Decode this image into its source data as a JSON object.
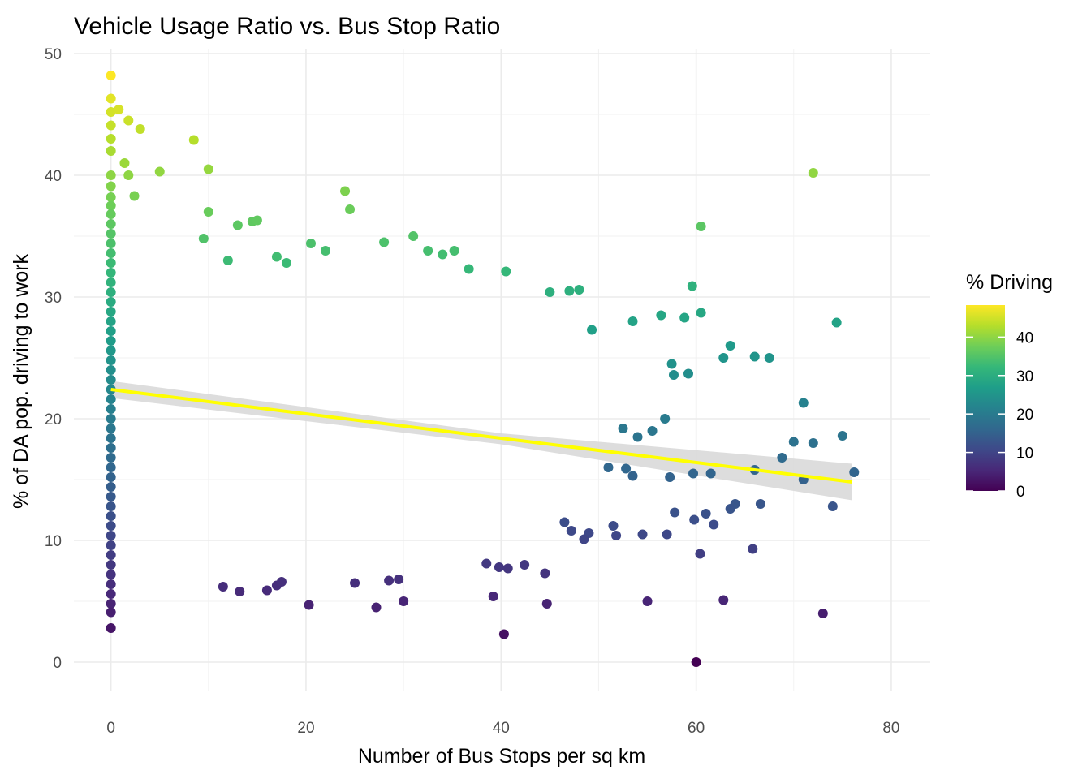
{
  "chart_data": {
    "type": "scatter",
    "title": "Vehicle Usage Ratio vs. Bus Stop Ratio",
    "xlabel": "Number of Bus Stops per sq km",
    "ylabel": "% of DA pop. driving to work",
    "xlim": [
      -3.8,
      84
    ],
    "ylim": [
      -2.4,
      50.4
    ],
    "x_ticks": [
      0,
      20,
      40,
      60,
      80
    ],
    "y_ticks": [
      0,
      10,
      20,
      30,
      40,
      50
    ],
    "grid": true,
    "colorbar": {
      "title": "% Driving",
      "min": 0,
      "max": 48.3,
      "ticks": [
        0,
        10,
        20,
        30,
        40
      ],
      "palette": [
        "#440154",
        "#482878",
        "#3e4989",
        "#31688e",
        "#26828e",
        "#1f9e89",
        "#35b779",
        "#6ece58",
        "#b5de2b",
        "#fde725"
      ]
    },
    "trend_line": {
      "color": "#ffff00",
      "x": [
        0,
        76
      ],
      "y": [
        22.4,
        14.8
      ],
      "confidence_band": {
        "x": [
          0,
          40,
          76
        ],
        "lower": [
          21.7,
          17.9,
          13.3
        ],
        "upper": [
          23.1,
          18.8,
          16.3
        ]
      }
    },
    "series": [
      {
        "points": [
          [
            0,
            48.2
          ],
          [
            0,
            46.3
          ],
          [
            0,
            45.2
          ],
          [
            0,
            44.1
          ],
          [
            0,
            43
          ],
          [
            0,
            42
          ],
          [
            0,
            40
          ],
          [
            0,
            39.1
          ],
          [
            0,
            38.2
          ],
          [
            0,
            37.5
          ],
          [
            0,
            36.8
          ],
          [
            0,
            36
          ],
          [
            0,
            35.2
          ],
          [
            0,
            34.4
          ],
          [
            0,
            33.6
          ],
          [
            0,
            32.8
          ],
          [
            0,
            32
          ],
          [
            0,
            31.2
          ],
          [
            0,
            30.4
          ],
          [
            0,
            29.6
          ],
          [
            0,
            28.8
          ],
          [
            0,
            28
          ],
          [
            0,
            27.2
          ],
          [
            0,
            26.4
          ],
          [
            0,
            25.6
          ],
          [
            0,
            24.8
          ],
          [
            0,
            24
          ],
          [
            0,
            23.2
          ],
          [
            0,
            22.4
          ],
          [
            0,
            21.6
          ],
          [
            0,
            20.8
          ],
          [
            0,
            20
          ],
          [
            0,
            19.2
          ],
          [
            0,
            18.4
          ],
          [
            0,
            17.6
          ],
          [
            0,
            16.8
          ],
          [
            0,
            16
          ],
          [
            0,
            15.2
          ],
          [
            0,
            14.4
          ],
          [
            0,
            13.6
          ],
          [
            0,
            12.8
          ],
          [
            0,
            12
          ],
          [
            0,
            11.2
          ],
          [
            0,
            10.4
          ],
          [
            0,
            9.6
          ],
          [
            0,
            8.8
          ],
          [
            0,
            8
          ],
          [
            0,
            7.2
          ],
          [
            0,
            6.4
          ],
          [
            0,
            5.6
          ],
          [
            0,
            4.8
          ],
          [
            0,
            4.1
          ],
          [
            0,
            2.8
          ],
          [
            0.8,
            45.4
          ],
          [
            1.4,
            41
          ],
          [
            1.8,
            40
          ],
          [
            1.8,
            44.5
          ],
          [
            2.4,
            38.3
          ],
          [
            3,
            43.8
          ],
          [
            5,
            40.3
          ],
          [
            8.5,
            42.9
          ],
          [
            10,
            40.5
          ],
          [
            10,
            37
          ],
          [
            9.5,
            34.8
          ],
          [
            13,
            35.9
          ],
          [
            14.5,
            36.2
          ],
          [
            15,
            36.3
          ],
          [
            12,
            33
          ],
          [
            17,
            33.3
          ],
          [
            18,
            32.8
          ],
          [
            20.5,
            34.4
          ],
          [
            22,
            33.8
          ],
          [
            24,
            38.7
          ],
          [
            24.5,
            37.2
          ],
          [
            28,
            34.5
          ],
          [
            31,
            35
          ],
          [
            32.5,
            33.8
          ],
          [
            34,
            33.5
          ],
          [
            35.2,
            33.8
          ],
          [
            36.7,
            32.3
          ],
          [
            40.5,
            32.1
          ],
          [
            45,
            30.4
          ],
          [
            47,
            30.5
          ],
          [
            48,
            30.6
          ],
          [
            72,
            40.2
          ],
          [
            60.5,
            35.8
          ],
          [
            59.6,
            30.9
          ],
          [
            60.5,
            28.7
          ],
          [
            58.8,
            28.3
          ],
          [
            56.4,
            28.5
          ],
          [
            53.5,
            28
          ],
          [
            49.3,
            27.3
          ],
          [
            74.4,
            27.9
          ],
          [
            63.5,
            26
          ],
          [
            66,
            25.1
          ],
          [
            67.5,
            25
          ],
          [
            62.8,
            25
          ],
          [
            57.5,
            24.5
          ],
          [
            57.7,
            23.6
          ],
          [
            59.2,
            23.7
          ],
          [
            71,
            21.3
          ],
          [
            70,
            18.1
          ],
          [
            72,
            18
          ],
          [
            75,
            18.6
          ],
          [
            76.2,
            15.6
          ],
          [
            71,
            15
          ],
          [
            68.8,
            16.8
          ],
          [
            66,
            15.8
          ],
          [
            61.5,
            15.5
          ],
          [
            59.7,
            15.5
          ],
          [
            52.5,
            19.2
          ],
          [
            55.5,
            19
          ],
          [
            54,
            18.5
          ],
          [
            56.8,
            20
          ],
          [
            51,
            16
          ],
          [
            52.8,
            15.9
          ],
          [
            53.5,
            15.3
          ],
          [
            57.3,
            15.2
          ],
          [
            74,
            12.8
          ],
          [
            64,
            13
          ],
          [
            66.6,
            13
          ],
          [
            63.5,
            12.6
          ],
          [
            61,
            12.2
          ],
          [
            57.8,
            12.3
          ],
          [
            59.8,
            11.7
          ],
          [
            61.8,
            11.3
          ],
          [
            60.4,
            8.9
          ],
          [
            65.8,
            9.3
          ],
          [
            57,
            10.5
          ],
          [
            54.5,
            10.5
          ],
          [
            49,
            10.6
          ],
          [
            51.5,
            11.2
          ],
          [
            51.8,
            10.4
          ],
          [
            48.5,
            10.1
          ],
          [
            47.2,
            10.8
          ],
          [
            46.5,
            11.5
          ],
          [
            44.5,
            7.3
          ],
          [
            42.4,
            8
          ],
          [
            38.5,
            8.1
          ],
          [
            39.8,
            7.8
          ],
          [
            40.7,
            7.7
          ],
          [
            39.2,
            5.4
          ],
          [
            44.7,
            4.8
          ],
          [
            40.3,
            2.3
          ],
          [
            55,
            5
          ],
          [
            62.8,
            5.1
          ],
          [
            73,
            4
          ],
          [
            60,
            0
          ],
          [
            30,
            5
          ],
          [
            27.2,
            4.5
          ],
          [
            20.3,
            4.7
          ],
          [
            25,
            6.5
          ],
          [
            28.5,
            6.7
          ],
          [
            29.5,
            6.8
          ],
          [
            16,
            5.9
          ],
          [
            17,
            6.3
          ],
          [
            17.5,
            6.6
          ],
          [
            13.2,
            5.8
          ],
          [
            11.5,
            6.2
          ]
        ]
      }
    ]
  }
}
